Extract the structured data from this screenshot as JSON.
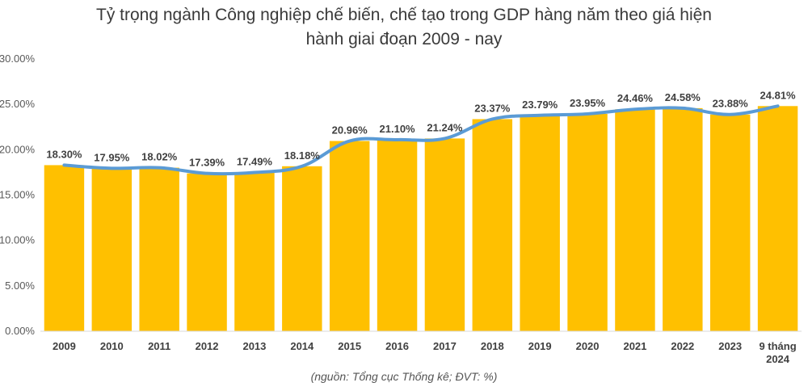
{
  "title_line1": "Tỷ trọng ngành Công nghiệp chế biến, chế tạo trong GDP hàng năm theo giá hiện",
  "title_line2": "hành giai đoạn 2009 - nay",
  "source": "(nguồn: Tổng cục Thống kê; ĐVT: %)",
  "chart_data": {
    "type": "bar",
    "title": "Tỷ trọng ngành Công nghiệp chế biến, chế tạo trong GDP hàng năm theo giá hiện hành giai đoạn 2009 - nay",
    "categories": [
      "2009",
      "2010",
      "2011",
      "2012",
      "2013",
      "2014",
      "2015",
      "2016",
      "2017",
      "2018",
      "2019",
      "2020",
      "2021",
      "2022",
      "2023",
      "9 tháng 2024"
    ],
    "values": [
      18.3,
      17.95,
      18.02,
      17.39,
      17.49,
      18.18,
      20.96,
      21.1,
      21.24,
      23.37,
      23.79,
      23.95,
      24.46,
      24.58,
      23.88,
      24.81
    ],
    "data_labels": [
      "18.30%",
      "17.95%",
      "18.02%",
      "17.39%",
      "17.49%",
      "18.18%",
      "20.96%",
      "21.10%",
      "21.24%",
      "23.37%",
      "23.79%",
      "23.95%",
      "24.46%",
      "24.58%",
      "23.88%",
      "24.81%"
    ],
    "line_overlay": true,
    "y_ticks": [
      "0.00%",
      "5.00%",
      "10.00%",
      "15.00%",
      "20.00%",
      "25.00%",
      "30.00%"
    ],
    "ylim": [
      0,
      30
    ],
    "grid": false,
    "bar_color": "#FFC000",
    "line_color": "#5B9BD5",
    "xlabel": "",
    "ylabel": ""
  }
}
